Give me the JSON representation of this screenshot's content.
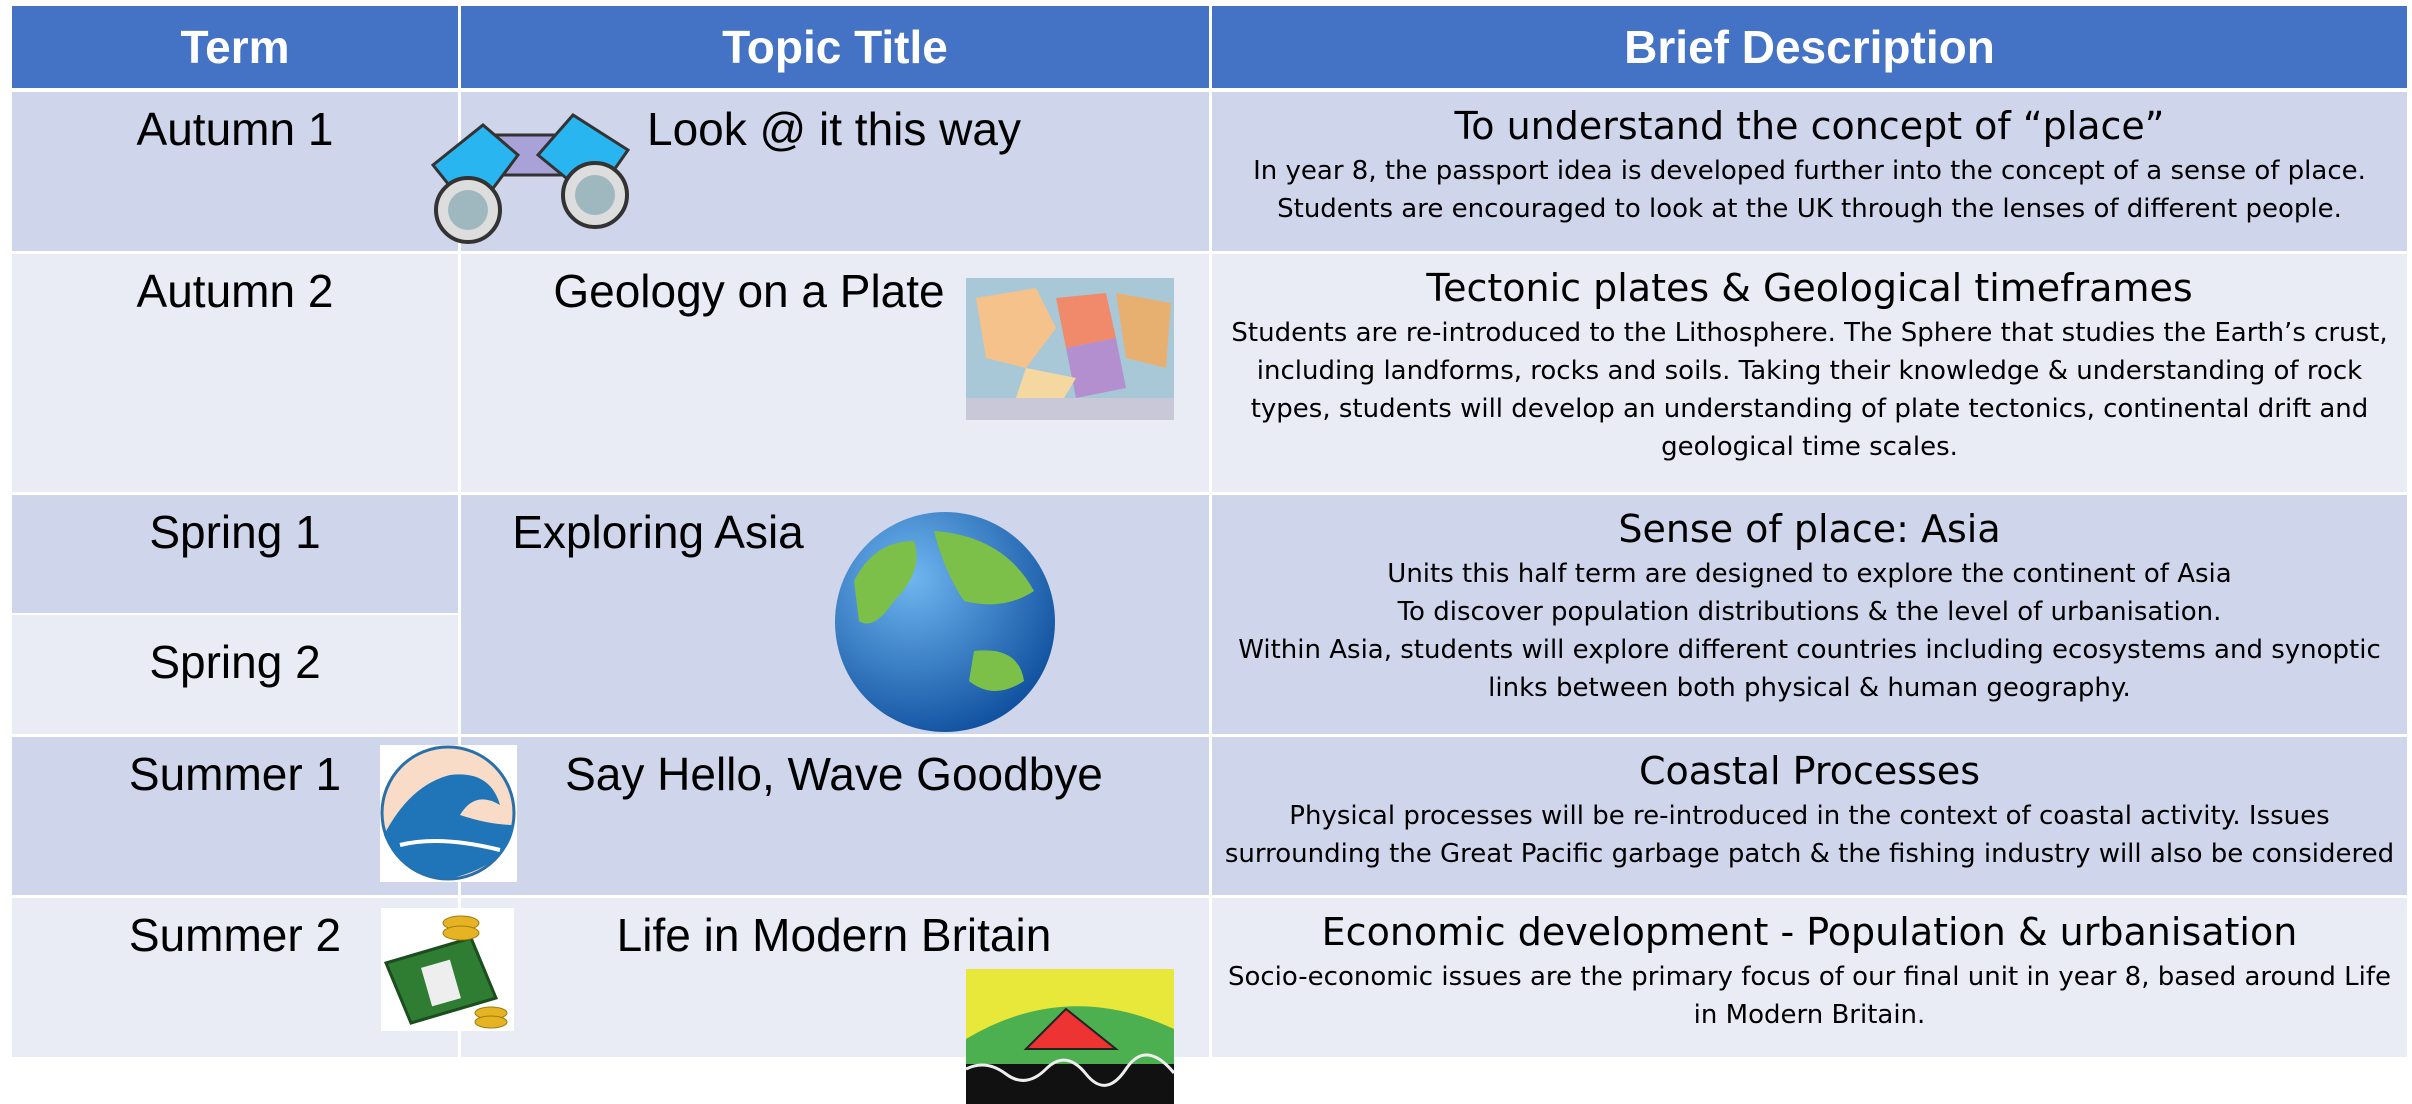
{
  "table": {
    "headers": [
      "Term",
      "Topic Title",
      "Brief Description"
    ],
    "rows": [
      {
        "terms": [
          "Autumn 1"
        ],
        "topic": "Look @ it this way",
        "heading": "To understand the concept of “place”",
        "lines": [
          "In year 8, the passport idea is developed further into the concept of a sense of place.",
          "Students are encouraged to look at the UK through the lenses of different people."
        ]
      },
      {
        "terms": [
          "Autumn 2"
        ],
        "topic": "Geology on a Plate",
        "heading": "Tectonic plates & Geological timeframes",
        "lines": [
          "Students are re-introduced to the Lithosphere. The Sphere that studies the Earth’s crust,",
          "including landforms, rocks and soils. Taking their knowledge & understanding of rock",
          "types, students will develop an understanding of plate tectonics, continental drift and",
          "geological time scales."
        ]
      },
      {
        "terms": [
          "Spring 1",
          "Spring 2"
        ],
        "topic": "Exploring Asia",
        "heading": "Sense of place: Asia",
        "lines": [
          "Units this half term are designed to explore the continent of Asia",
          "To discover population distributions & the level of urbanisation.",
          "Within Asia, students will explore different countries including ecosystems and synoptic",
          "links between both physical & human geography."
        ]
      },
      {
        "terms": [
          "Summer 1"
        ],
        "topic": "Say Hello, Wave Goodbye",
        "heading": "Coastal Processes",
        "lines": [
          "Physical processes will be re-introduced in the context of coastal activity. Issues",
          "surrounding the Great Pacific garbage patch & the fishing industry will also be considered"
        ]
      },
      {
        "terms": [
          "Summer 2"
        ],
        "topic": "Life in Modern Britain",
        "heading": "Economic development - Population & urbanisation",
        "lines": [
          "Socio-economic issues are the primary focus of our final unit in year 8, based around Life",
          "in Modern Britain."
        ]
      }
    ]
  }
}
